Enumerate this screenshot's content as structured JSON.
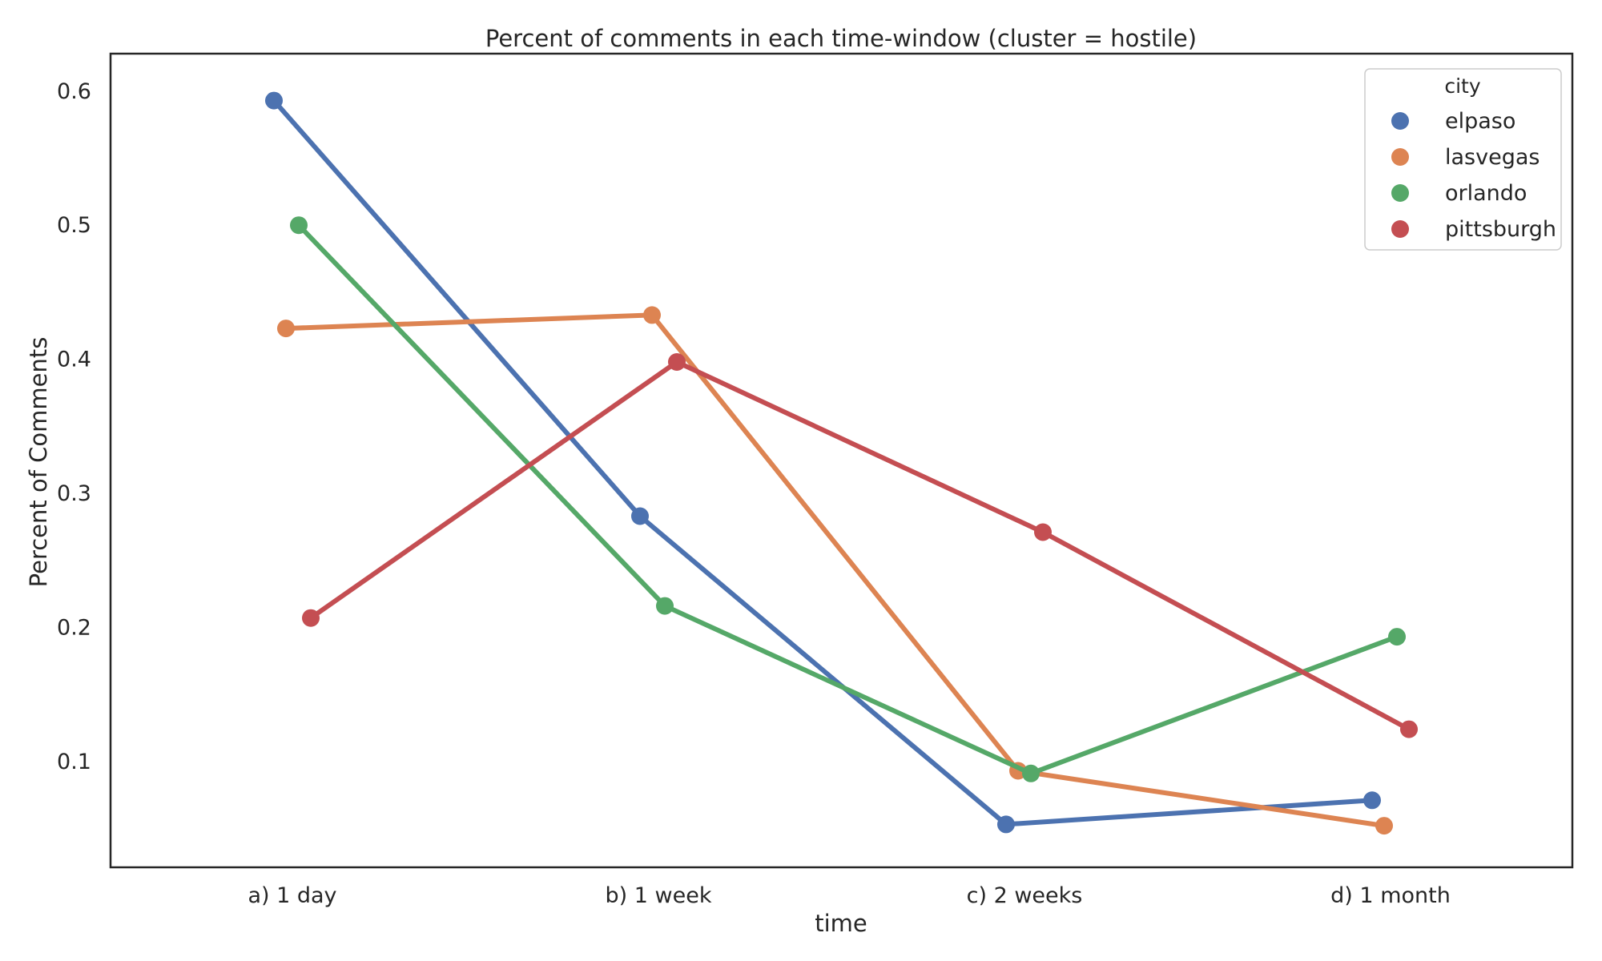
{
  "chart_data": {
    "type": "line",
    "title": "Percent of comments in each time-window (cluster = hostile)",
    "xlabel": "time",
    "ylabel": "Percent of Comments",
    "categories": [
      "a) 1 day",
      "b) 1 week",
      "c) 2 weeks",
      "d) 1 month"
    ],
    "yticks": [
      0.1,
      0.2,
      0.3,
      0.4,
      0.5,
      0.6
    ],
    "ytick_labels": [
      "0.1",
      "0.2",
      "0.3",
      "0.4",
      "0.5",
      "0.6"
    ],
    "ylim": [
      0.021,
      0.628
    ],
    "grid": false,
    "legend": {
      "title": "city",
      "position": "top-right"
    },
    "series": [
      {
        "name": "elpaso",
        "color": "#4c72b0",
        "values": [
          0.593,
          0.283,
          0.053,
          0.071
        ]
      },
      {
        "name": "lasvegas",
        "color": "#dd8452",
        "values": [
          0.423,
          0.433,
          0.093,
          0.052
        ]
      },
      {
        "name": "orlando",
        "color": "#55a868",
        "values": [
          0.5,
          0.216,
          0.091,
          0.193
        ]
      },
      {
        "name": "pittsburgh",
        "color": "#c44e52",
        "values": [
          0.207,
          0.398,
          0.271,
          0.124
        ]
      }
    ]
  }
}
